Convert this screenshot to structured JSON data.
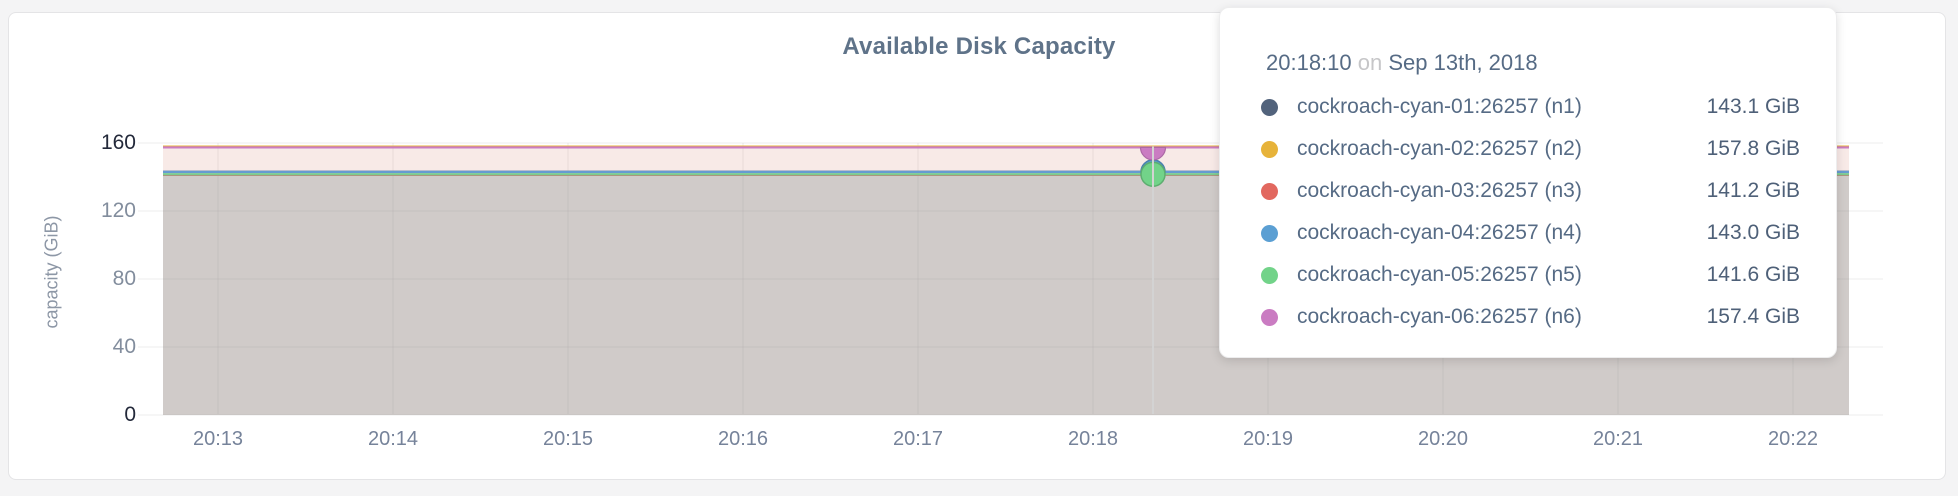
{
  "window": {
    "background": "#f4f4f5"
  },
  "chart_data": {
    "type": "area",
    "title": "Available Disk Capacity",
    "ylabel": "capacity (GiB)",
    "xlabel": "",
    "x_ticks": [
      "20:13",
      "20:14",
      "20:15",
      "20:16",
      "20:17",
      "20:18",
      "20:19",
      "20:20",
      "20:21",
      "20:22"
    ],
    "y_ticks": [
      "0",
      "40",
      "80",
      "120",
      "160"
    ],
    "y_tick_values": [
      0,
      40,
      80,
      120,
      160
    ],
    "ylim": [
      0,
      160
    ],
    "grid": true,
    "legend_position": "tooltip-overlay",
    "series": [
      {
        "name": "cockroach-cyan-01:26257 (n1)",
        "color": "#52637c",
        "value_gib": 143.1,
        "value_label": "143.1 GiB"
      },
      {
        "name": "cockroach-cyan-02:26257 (n2)",
        "color": "#e7b33a",
        "value_gib": 157.8,
        "value_label": "157.8 GiB"
      },
      {
        "name": "cockroach-cyan-03:26257 (n3)",
        "color": "#e2685f",
        "value_gib": 141.2,
        "value_label": "141.2 GiB"
      },
      {
        "name": "cockroach-cyan-04:26257 (n4)",
        "color": "#5b9fd3",
        "value_gib": 143.0,
        "value_label": "143.0 GiB"
      },
      {
        "name": "cockroach-cyan-05:26257 (n5)",
        "color": "#72d389",
        "value_gib": 141.6,
        "value_label": "141.6 GiB"
      },
      {
        "name": "cockroach-cyan-06:26257 (n6)",
        "color": "#ca7cc2",
        "value_gib": 157.4,
        "value_label": "157.4 GiB"
      }
    ],
    "hover": {
      "time": "20:18:10",
      "on_word": "on",
      "date": "Sep 13th, 2018",
      "highlighted_dots": [
        "cockroach-cyan-04:26257 (n4)",
        "cockroach-cyan-05:26257 (n5)",
        "cockroach-cyan-06:26257 (n6)"
      ]
    }
  }
}
